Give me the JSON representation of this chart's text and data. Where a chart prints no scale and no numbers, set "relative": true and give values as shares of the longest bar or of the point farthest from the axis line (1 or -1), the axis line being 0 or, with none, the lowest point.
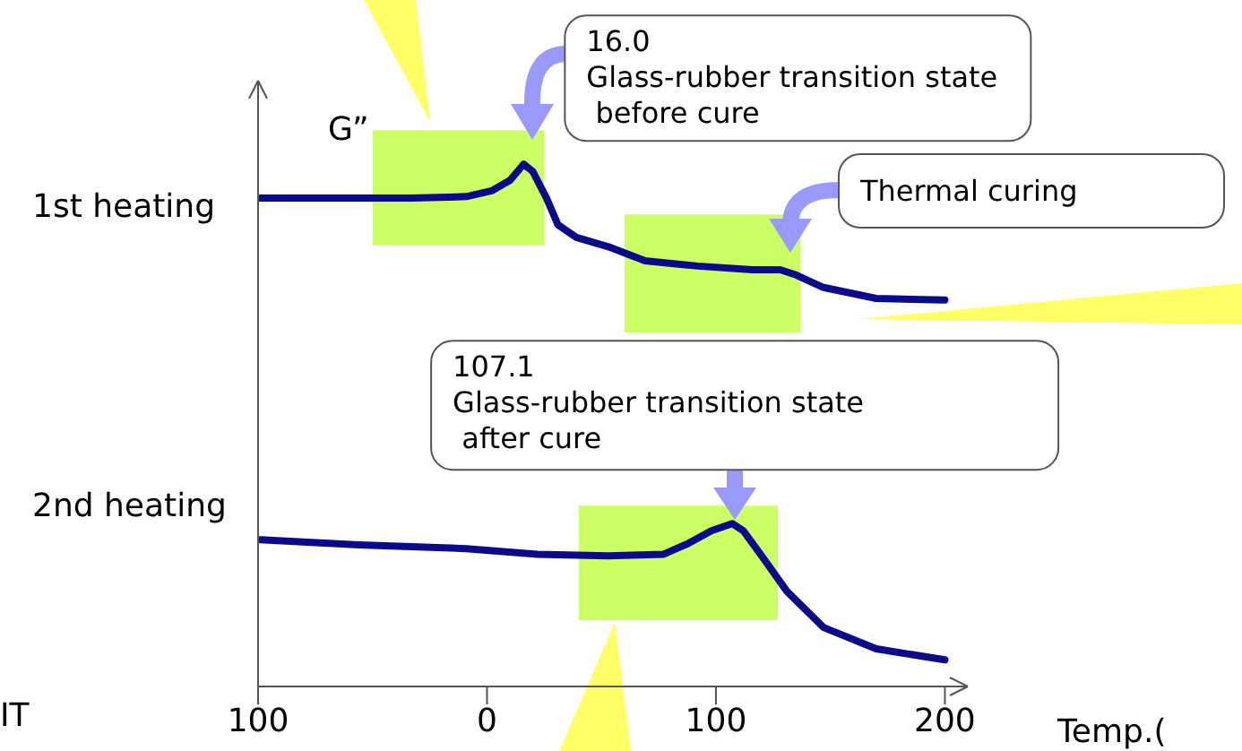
{
  "chart_data": {
    "type": "line",
    "relative": true,
    "ylabel": "G”",
    "xlabel": "Temp.(",
    "xlim": [
      -100,
      210
    ],
    "xticks": [
      {
        "value": -100,
        "label": "100"
      },
      0,
      100,
      200
    ],
    "tick_labels": "x",
    "marker": "none",
    "line_style": "solid",
    "grid": false,
    "series": [
      {
        "color": "#0a0a8a",
        "x": [
          -99,
          -56,
          -33,
          -9,
          2,
          10,
          16,
          20,
          26,
          31,
          39,
          53,
          69,
          92,
          116,
          128,
          135,
          147,
          170,
          200
        ],
        "values": [
          0.935,
          0.935,
          0.935,
          0.938,
          0.949,
          0.969,
          1,
          0.986,
          0.935,
          0.884,
          0.86,
          0.842,
          0.815,
          0.805,
          0.798,
          0.798,
          0.788,
          0.764,
          0.743,
          0.74
        ]
      },
      {
        "color": "#0a0a8a",
        "x": [
          -99,
          -56,
          -9,
          22,
          53,
          77,
          88,
          98,
          107.1,
          112,
          120,
          131,
          147,
          170,
          200
        ],
        "values": [
          0.281,
          0.271,
          0.264,
          0.253,
          0.25,
          0.253,
          0.274,
          0.298,
          0.312,
          0.298,
          0.25,
          0.182,
          0.113,
          0.072,
          0.051
        ]
      }
    ],
    "bands": [
      {
        "axis": "x",
        "from": -50,
        "to": 25,
        "color": "#ccff66"
      },
      {
        "axis": "x",
        "from": 60,
        "to": 137,
        "color": "#ccff66"
      },
      {
        "axis": "x",
        "from": 40,
        "to": 127,
        "color": "#ccff66"
      }
    ],
    "annotations": [
      {
        "text": "16.0\nGlass-rubber transition state\n before cure",
        "x": 16,
        "y": 1
      },
      {
        "text": "107.1\nGlass-rubber transition state\n after cure",
        "x": 107.1,
        "y": 0.312
      },
      "Thermal curing",
      "1st heating",
      "2nd heating",
      "IT"
    ]
  }
}
